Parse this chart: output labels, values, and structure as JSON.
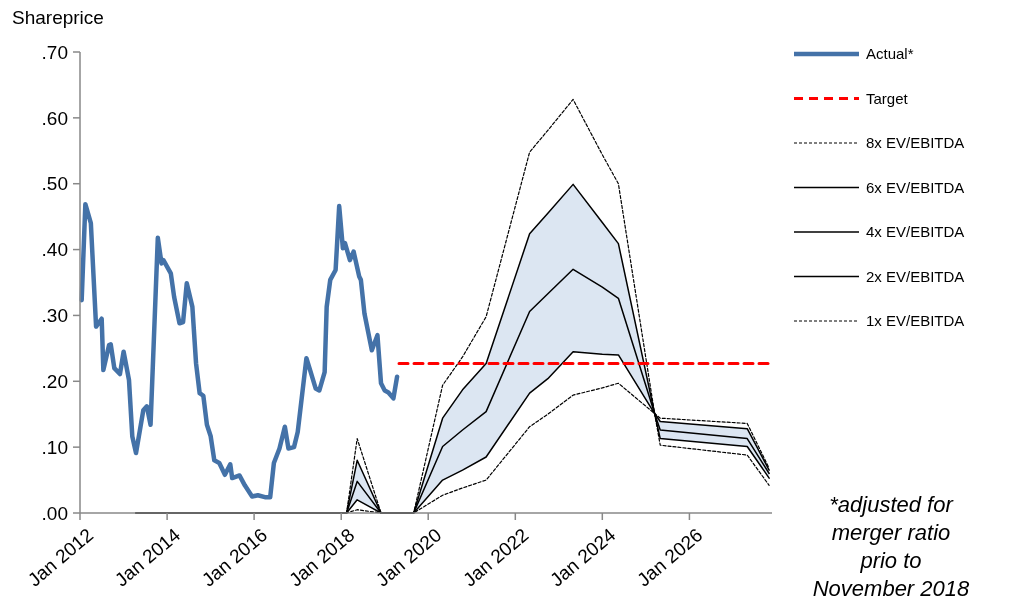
{
  "chart_data": {
    "type": "line",
    "ylabel": "Shareprice",
    "xlim": [
      "2012-01-01",
      "2027-11-25"
    ],
    "xticks": [
      {
        "value": "2012-01-01",
        "label": "Jan 2012"
      },
      {
        "value": "2014-01-01",
        "label": "Jan 2014"
      },
      {
        "value": "2016-01-01",
        "label": "Jan 2016"
      },
      {
        "value": "2018-01-01",
        "label": "Jan 2018"
      },
      {
        "value": "2020-01-01",
        "label": "Jan 2020"
      },
      {
        "value": "2022-01-01",
        "label": "Jan 2022"
      },
      {
        "value": "2024-01-01",
        "label": "Jan 2024"
      },
      {
        "value": "2026-01-01",
        "label": "Jan 2026"
      }
    ],
    "ylim": [
      0,
      0.7
    ],
    "yticks": [
      {
        "value": 0,
        "label": ".00"
      },
      {
        "value": 0.1,
        "label": ".10"
      },
      {
        "value": 0.2,
        "label": ".20"
      },
      {
        "value": 0.3,
        "label": ".30"
      },
      {
        "value": 0.4,
        "label": ".40"
      },
      {
        "value": 0.5,
        "label": ".50"
      },
      {
        "value": 0.6,
        "label": ".60"
      },
      {
        "value": 0.7,
        "label": ".70"
      }
    ],
    "grid": false,
    "legend": "right",
    "annotations": [
      "*adjusted for merger ratio prio to November 2018"
    ],
    "series": [
      {
        "name": "Actual*",
        "color": "#4472a8",
        "line_style": "solid",
        "x": [
          "2012-01-15",
          "2012-02-15",
          "2012-04-01",
          "2012-05-15",
          "2012-07-01",
          "2012-07-15",
          "2012-09-01",
          "2012-09-15",
          "2012-10-15",
          "2012-12-01",
          "2013-01-01",
          "2013-02-15",
          "2013-03-15",
          "2013-04-15",
          "2013-06-15",
          "2013-07-15",
          "2013-08-15",
          "2013-10-15",
          "2013-11-15",
          "2013-12-01",
          "2014-02-01",
          "2014-03-01",
          "2014-04-15",
          "2014-05-15",
          "2014-06-15",
          "2014-08-01",
          "2014-09-01",
          "2014-10-01",
          "2014-11-01",
          "2014-12-01",
          "2015-01-01",
          "2015-02-01",
          "2015-03-15",
          "2015-05-01",
          "2015-06-15",
          "2015-07-01",
          "2015-09-01",
          "2015-10-15",
          "2015-12-15",
          "2016-02-01",
          "2016-04-01",
          "2016-05-15",
          "2016-06-15",
          "2016-08-01",
          "2016-09-15",
          "2016-10-15",
          "2016-12-01",
          "2017-01-01",
          "2017-03-15",
          "2017-04-15",
          "2017-06-01",
          "2017-07-01",
          "2017-08-15",
          "2017-09-01",
          "2017-10-01",
          "2017-11-15",
          "2017-12-15",
          "2018-01-15",
          "2018-02-01",
          "2018-03-15",
          "2018-04-15",
          "2018-06-01",
          "2018-06-15",
          "2018-07-15",
          "2018-09-15",
          "2018-11-01",
          "2018-12-01",
          "2019-01-01",
          "2019-02-01",
          "2019-03-15",
          "2019-04-15"
        ],
        "values": [
          0.323,
          0.469,
          0.44,
          0.283,
          0.295,
          0.217,
          0.255,
          0.256,
          0.22,
          0.211,
          0.245,
          0.202,
          0.116,
          0.091,
          0.156,
          0.162,
          0.134,
          0.418,
          0.379,
          0.384,
          0.364,
          0.328,
          0.288,
          0.29,
          0.349,
          0.313,
          0.227,
          0.182,
          0.178,
          0.134,
          0.117,
          0.08,
          0.076,
          0.058,
          0.074,
          0.053,
          0.057,
          0.042,
          0.025,
          0.027,
          0.024,
          0.024,
          0.076,
          0.098,
          0.131,
          0.098,
          0.1,
          0.123,
          0.235,
          0.217,
          0.189,
          0.186,
          0.214,
          0.313,
          0.354,
          0.369,
          0.466,
          0.402,
          0.41,
          0.384,
          0.397,
          0.359,
          0.354,
          0.303,
          0.247,
          0.27,
          0.197,
          0.186,
          0.183,
          0.174,
          0.207
        ]
      },
      {
        "name": "Target",
        "color": "#ff0000",
        "line_style": "dashed",
        "x": [
          "2019-05-01",
          "2027-11-25"
        ],
        "values": [
          0.227,
          0.227
        ]
      },
      {
        "name": "8x EV/EBITDA",
        "color": "#000000",
        "line_style": "dashed",
        "x": [
          "2013-04-15",
          "2016-07-01",
          "2018-02-15",
          "2018-05-15",
          "2018-12-01",
          "2019-09-01",
          "2020-05-01",
          "2020-10-15",
          "2021-05-01",
          "2022-05-01",
          "2022-10-01",
          "2023-05-01",
          "2024-01-01",
          "2024-05-15",
          "2025-03-15",
          "2025-05-01",
          "2027-05-01",
          "2027-11-01"
        ],
        "values": [
          0,
          0,
          0,
          0.113,
          0,
          0,
          0.194,
          0.237,
          0.298,
          0.548,
          0.581,
          0.628,
          0.544,
          0.5,
          0.151,
          0.144,
          0.136,
          0.068
        ]
      },
      {
        "name": "6x EV/EBITDA",
        "color": "#000000",
        "line_style": "solid",
        "x": [
          "2013-04-15",
          "2016-07-01",
          "2018-02-15",
          "2018-05-15",
          "2018-12-01",
          "2019-09-01",
          "2020-05-01",
          "2020-10-15",
          "2021-05-01",
          "2022-05-01",
          "2022-10-01",
          "2023-05-01",
          "2024-01-01",
          "2024-05-15",
          "2025-03-15",
          "2025-05-01",
          "2027-05-01",
          "2027-11-01"
        ],
        "values": [
          0,
          0,
          0,
          0.08,
          0,
          0,
          0.144,
          0.187,
          0.227,
          0.424,
          0.455,
          0.499,
          0.441,
          0.409,
          0.151,
          0.139,
          0.128,
          0.065
        ]
      },
      {
        "name": "4x EV/EBITDA",
        "color": "#000000",
        "line_style": "solid",
        "x": [
          "2013-04-15",
          "2016-07-01",
          "2018-02-15",
          "2018-05-15",
          "2018-12-01",
          "2019-09-01",
          "2020-05-01",
          "2020-10-15",
          "2021-05-01",
          "2022-05-01",
          "2022-10-01",
          "2023-05-01",
          "2024-01-01",
          "2024-05-15",
          "2025-03-15",
          "2025-05-01",
          "2027-05-01",
          "2027-11-01"
        ],
        "values": [
          0,
          0,
          0,
          0.048,
          0,
          0,
          0.101,
          0.126,
          0.154,
          0.306,
          0.333,
          0.37,
          0.343,
          0.326,
          0.151,
          0.126,
          0.113,
          0.06
        ],
        "lower": [
          0,
          0,
          0,
          0.02,
          0,
          0,
          0.05,
          0.065,
          0.085,
          0.182,
          0.204,
          0.245,
          0.241,
          0.24,
          0.151,
          0.113,
          0.101,
          0.053
        ],
        "upper": [
          0,
          0,
          0,
          0.08,
          0,
          0,
          0.144,
          0.187,
          0.227,
          0.424,
          0.455,
          0.499,
          0.441,
          0.409,
          0.151,
          0.139,
          0.128,
          0.065
        ]
      },
      {
        "name": "2x EV/EBITDA",
        "color": "#000000",
        "line_style": "solid",
        "x": [
          "2013-04-15",
          "2016-07-01",
          "2018-02-15",
          "2018-05-15",
          "2018-12-01",
          "2019-09-01",
          "2020-05-01",
          "2020-10-15",
          "2021-05-01",
          "2022-05-01",
          "2022-10-01",
          "2023-05-01",
          "2024-01-01",
          "2024-05-15",
          "2025-03-15",
          "2025-05-01",
          "2027-05-01",
          "2027-11-01"
        ],
        "values": [
          0,
          0,
          0,
          0.02,
          0,
          0,
          0.05,
          0.065,
          0.085,
          0.182,
          0.204,
          0.245,
          0.241,
          0.24,
          0.151,
          0.113,
          0.101,
          0.053
        ]
      },
      {
        "name": "1x EV/EBITDA",
        "color": "#000000",
        "line_style": "dashed",
        "x": [
          "2013-04-15",
          "2016-07-01",
          "2018-02-15",
          "2018-05-15",
          "2018-12-01",
          "2019-09-01",
          "2020-05-01",
          "2020-10-15",
          "2021-05-01",
          "2022-05-01",
          "2022-10-01",
          "2023-05-01",
          "2024-01-01",
          "2024-05-15",
          "2025-03-15",
          "2025-05-01",
          "2027-05-01",
          "2027-11-01"
        ],
        "values": [
          0,
          0,
          0,
          0.005,
          0,
          0,
          0.027,
          0.038,
          0.05,
          0.131,
          0.15,
          0.179,
          0.19,
          0.197,
          0.151,
          0.103,
          0.088,
          0.042
        ]
      }
    ]
  }
}
